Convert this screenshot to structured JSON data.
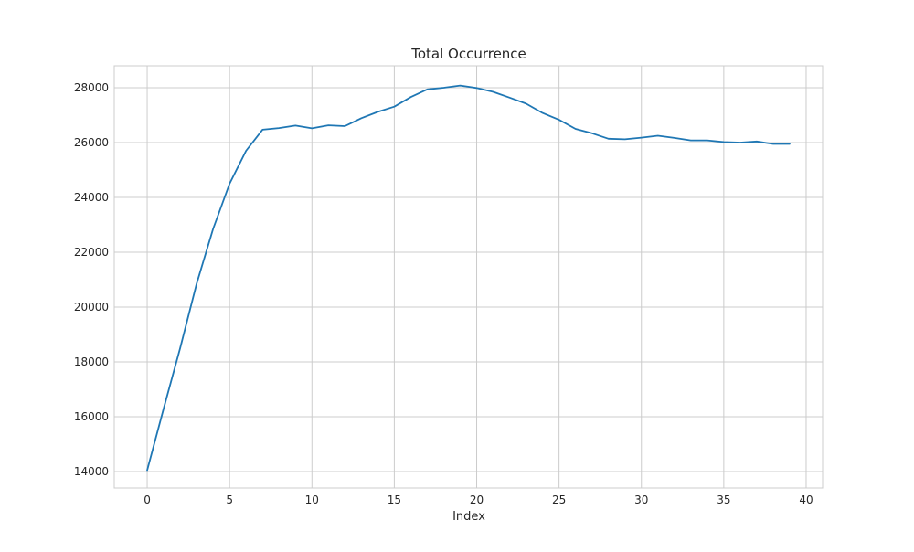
{
  "chart_data": {
    "type": "line",
    "title": "Total Occurrence",
    "xlabel": "Index",
    "ylabel": "",
    "xlim": [
      -2,
      41
    ],
    "ylim": [
      13400,
      28800
    ],
    "xticks": [
      0,
      5,
      10,
      15,
      20,
      25,
      30,
      35,
      40
    ],
    "yticks": [
      14000,
      16000,
      18000,
      20000,
      22000,
      24000,
      26000,
      28000
    ],
    "grid": true,
    "legend": "none",
    "series": [
      {
        "name": "Total Occurrence",
        "color": "#1f77b4",
        "x": [
          0,
          1,
          2,
          3,
          4,
          5,
          6,
          7,
          8,
          9,
          10,
          11,
          12,
          13,
          14,
          15,
          16,
          17,
          18,
          19,
          20,
          21,
          22,
          23,
          24,
          25,
          26,
          27,
          28,
          29,
          30,
          31,
          32,
          33,
          34,
          35,
          36,
          37,
          38,
          39
        ],
        "y": [
          14050,
          16300,
          18500,
          20850,
          22850,
          24500,
          25700,
          26470,
          26530,
          26620,
          26520,
          26630,
          26600,
          26890,
          27120,
          27310,
          27660,
          27940,
          28000,
          28080,
          27990,
          27850,
          27640,
          27420,
          27080,
          26830,
          26500,
          26340,
          26140,
          26120,
          26180,
          26250,
          26170,
          26080,
          26080,
          26020,
          26000,
          26040,
          25950,
          25950
        ]
      }
    ]
  }
}
